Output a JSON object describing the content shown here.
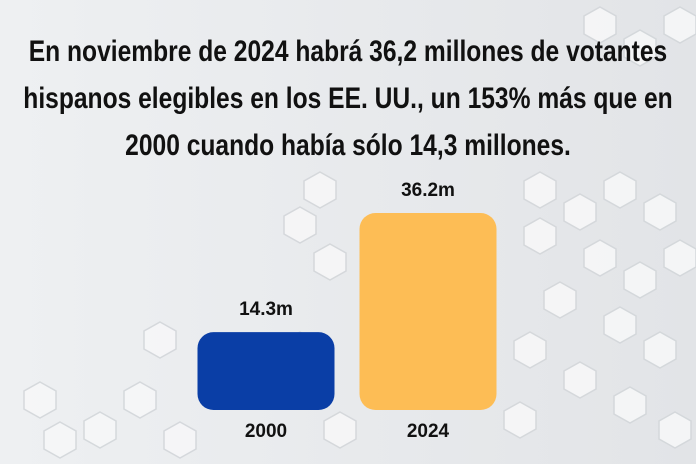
{
  "chart_data": {
    "type": "bar",
    "title": "En noviembre de 2024 habrá 36,2 millones de votantes hispanos elegibles en los EE. UU., un 153% más que en 2000 cuando había sólo 14,3 millones.",
    "categories": [
      "2000",
      "2024"
    ],
    "values": [
      14.3,
      36.2
    ],
    "value_labels": [
      "14.3m",
      "36.2m"
    ],
    "colors": [
      "#0a3ea6",
      "#fdbd55"
    ]
  }
}
